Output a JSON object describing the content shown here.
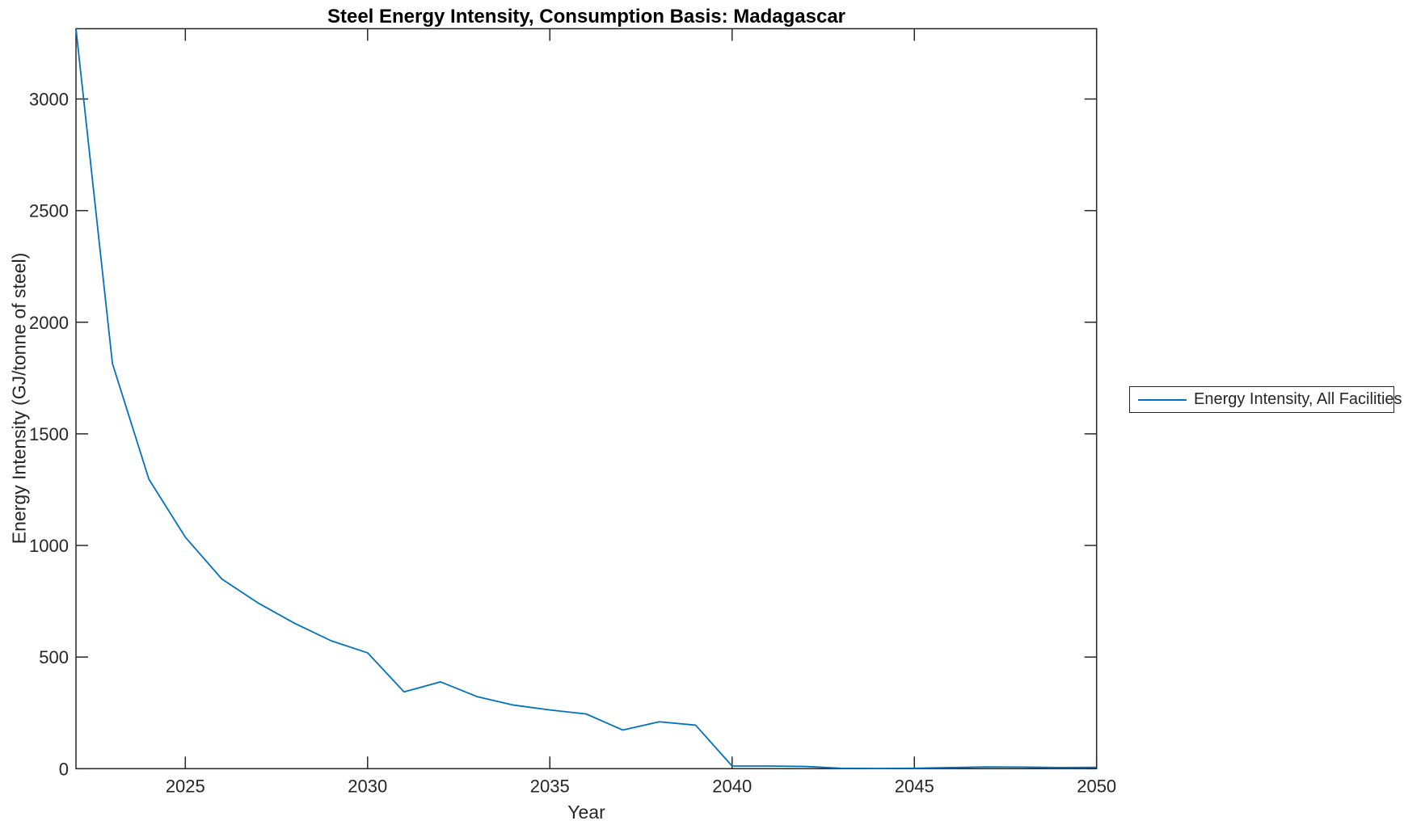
{
  "colors": {
    "line": "#0072BD",
    "axis": "#262626",
    "tick_label": "#262626",
    "title": "#000000",
    "background": "#ffffff"
  },
  "legend": {
    "entries": [
      "Energy Intensity, All Facilities"
    ],
    "position": "right-outside"
  },
  "chart_data": {
    "type": "line",
    "title": "Steel Energy Intensity, Consumption Basis: Madagascar",
    "xlabel": "Year",
    "ylabel": "Energy Intensity (GJ/tonne of steel)",
    "xlim": [
      2022,
      2050
    ],
    "ylim": [
      0,
      3315
    ],
    "xticks": [
      2025,
      2030,
      2035,
      2040,
      2045,
      2050
    ],
    "yticks": [
      0,
      500,
      1000,
      1500,
      2000,
      2500,
      3000
    ],
    "grid": false,
    "box": true,
    "legend_position": "right-outside",
    "series": [
      {
        "name": "Energy Intensity, All Facilities",
        "x": [
          2022,
          2023,
          2024,
          2025,
          2026,
          2027,
          2028,
          2029,
          2030,
          2031,
          2032,
          2033,
          2034,
          2035,
          2036,
          2037,
          2038,
          2039,
          2040,
          2041,
          2042,
          2043,
          2044,
          2045,
          2046,
          2047,
          2048,
          2049,
          2050
        ],
        "values": [
          3315,
          1815,
          1297,
          1037,
          850,
          742,
          651,
          573,
          519,
          344,
          389,
          323,
          285,
          263,
          245,
          173,
          210,
          195,
          12,
          12,
          10,
          2,
          1,
          2,
          5,
          8,
          7,
          5,
          6
        ]
      }
    ]
  }
}
